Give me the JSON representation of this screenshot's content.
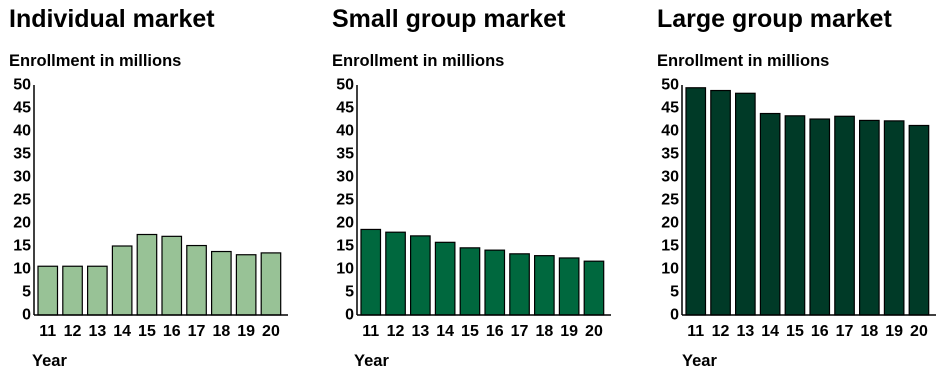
{
  "chart_data": [
    {
      "type": "bar",
      "title": "Individual market",
      "ylabel": "Enrollment in millions",
      "xlabel": "Year",
      "categories": [
        "11",
        "12",
        "13",
        "14",
        "15",
        "16",
        "17",
        "18",
        "19",
        "20"
      ],
      "values": [
        10.6,
        10.6,
        10.6,
        15.0,
        17.5,
        17.1,
        15.1,
        13.8,
        13.1,
        13.5
      ],
      "ylim": [
        0,
        50
      ],
      "yticks": [
        "0",
        "5",
        "10",
        "15",
        "20",
        "25",
        "30",
        "35",
        "40",
        "45",
        "50"
      ],
      "color": "#98c296",
      "grid": false
    },
    {
      "type": "bar",
      "title": "Small group market",
      "ylabel": "Enrollment in millions",
      "xlabel": "Year",
      "categories": [
        "11",
        "12",
        "13",
        "14",
        "15",
        "16",
        "17",
        "18",
        "19",
        "20"
      ],
      "values": [
        18.6,
        18.0,
        17.2,
        15.8,
        14.6,
        14.1,
        13.3,
        12.9,
        12.4,
        11.7
      ],
      "ylim": [
        0,
        50
      ],
      "yticks": [
        "0",
        "5",
        "10",
        "15",
        "20",
        "25",
        "30",
        "35",
        "40",
        "45",
        "50"
      ],
      "color": "#00683e",
      "grid": false
    },
    {
      "type": "bar",
      "title": "Large group market",
      "ylabel": "Enrollment in millions",
      "xlabel": "Year",
      "categories": [
        "11",
        "12",
        "13",
        "14",
        "15",
        "16",
        "17",
        "18",
        "19",
        "20"
      ],
      "values": [
        49.4,
        48.8,
        48.2,
        43.8,
        43.3,
        42.6,
        43.2,
        42.3,
        42.2,
        41.2
      ],
      "ylim": [
        0,
        50
      ],
      "yticks": [
        "0",
        "5",
        "10",
        "15",
        "20",
        "25",
        "30",
        "35",
        "40",
        "45",
        "50"
      ],
      "color": "#003a27",
      "grid": false
    }
  ]
}
